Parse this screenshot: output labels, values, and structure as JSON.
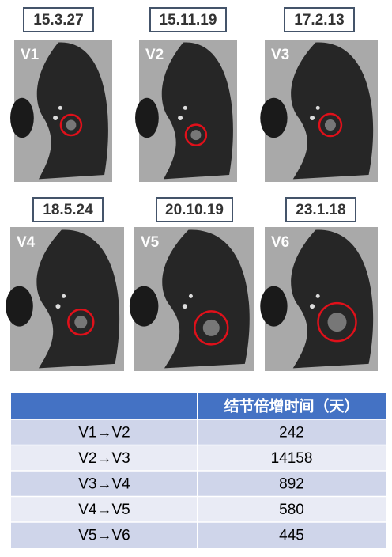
{
  "panels": [
    {
      "date": "15.3.27",
      "label": "V1"
    },
    {
      "date": "15.11.19",
      "label": "V2"
    },
    {
      "date": "17.2.13",
      "label": "V3"
    },
    {
      "date": "18.5.24",
      "label": "V4"
    },
    {
      "date": "20.10.19",
      "label": "V5"
    },
    {
      "date": "23.1.18",
      "label": "V6"
    }
  ],
  "table": {
    "header": "结节倍增时间（天）",
    "rows": [
      [
        "V1→V2",
        242
      ],
      [
        "V2→V3",
        14158
      ],
      [
        "V3→V4",
        892
      ],
      [
        "V4→V5",
        580
      ],
      [
        "V5→V6",
        445
      ]
    ]
  }
}
